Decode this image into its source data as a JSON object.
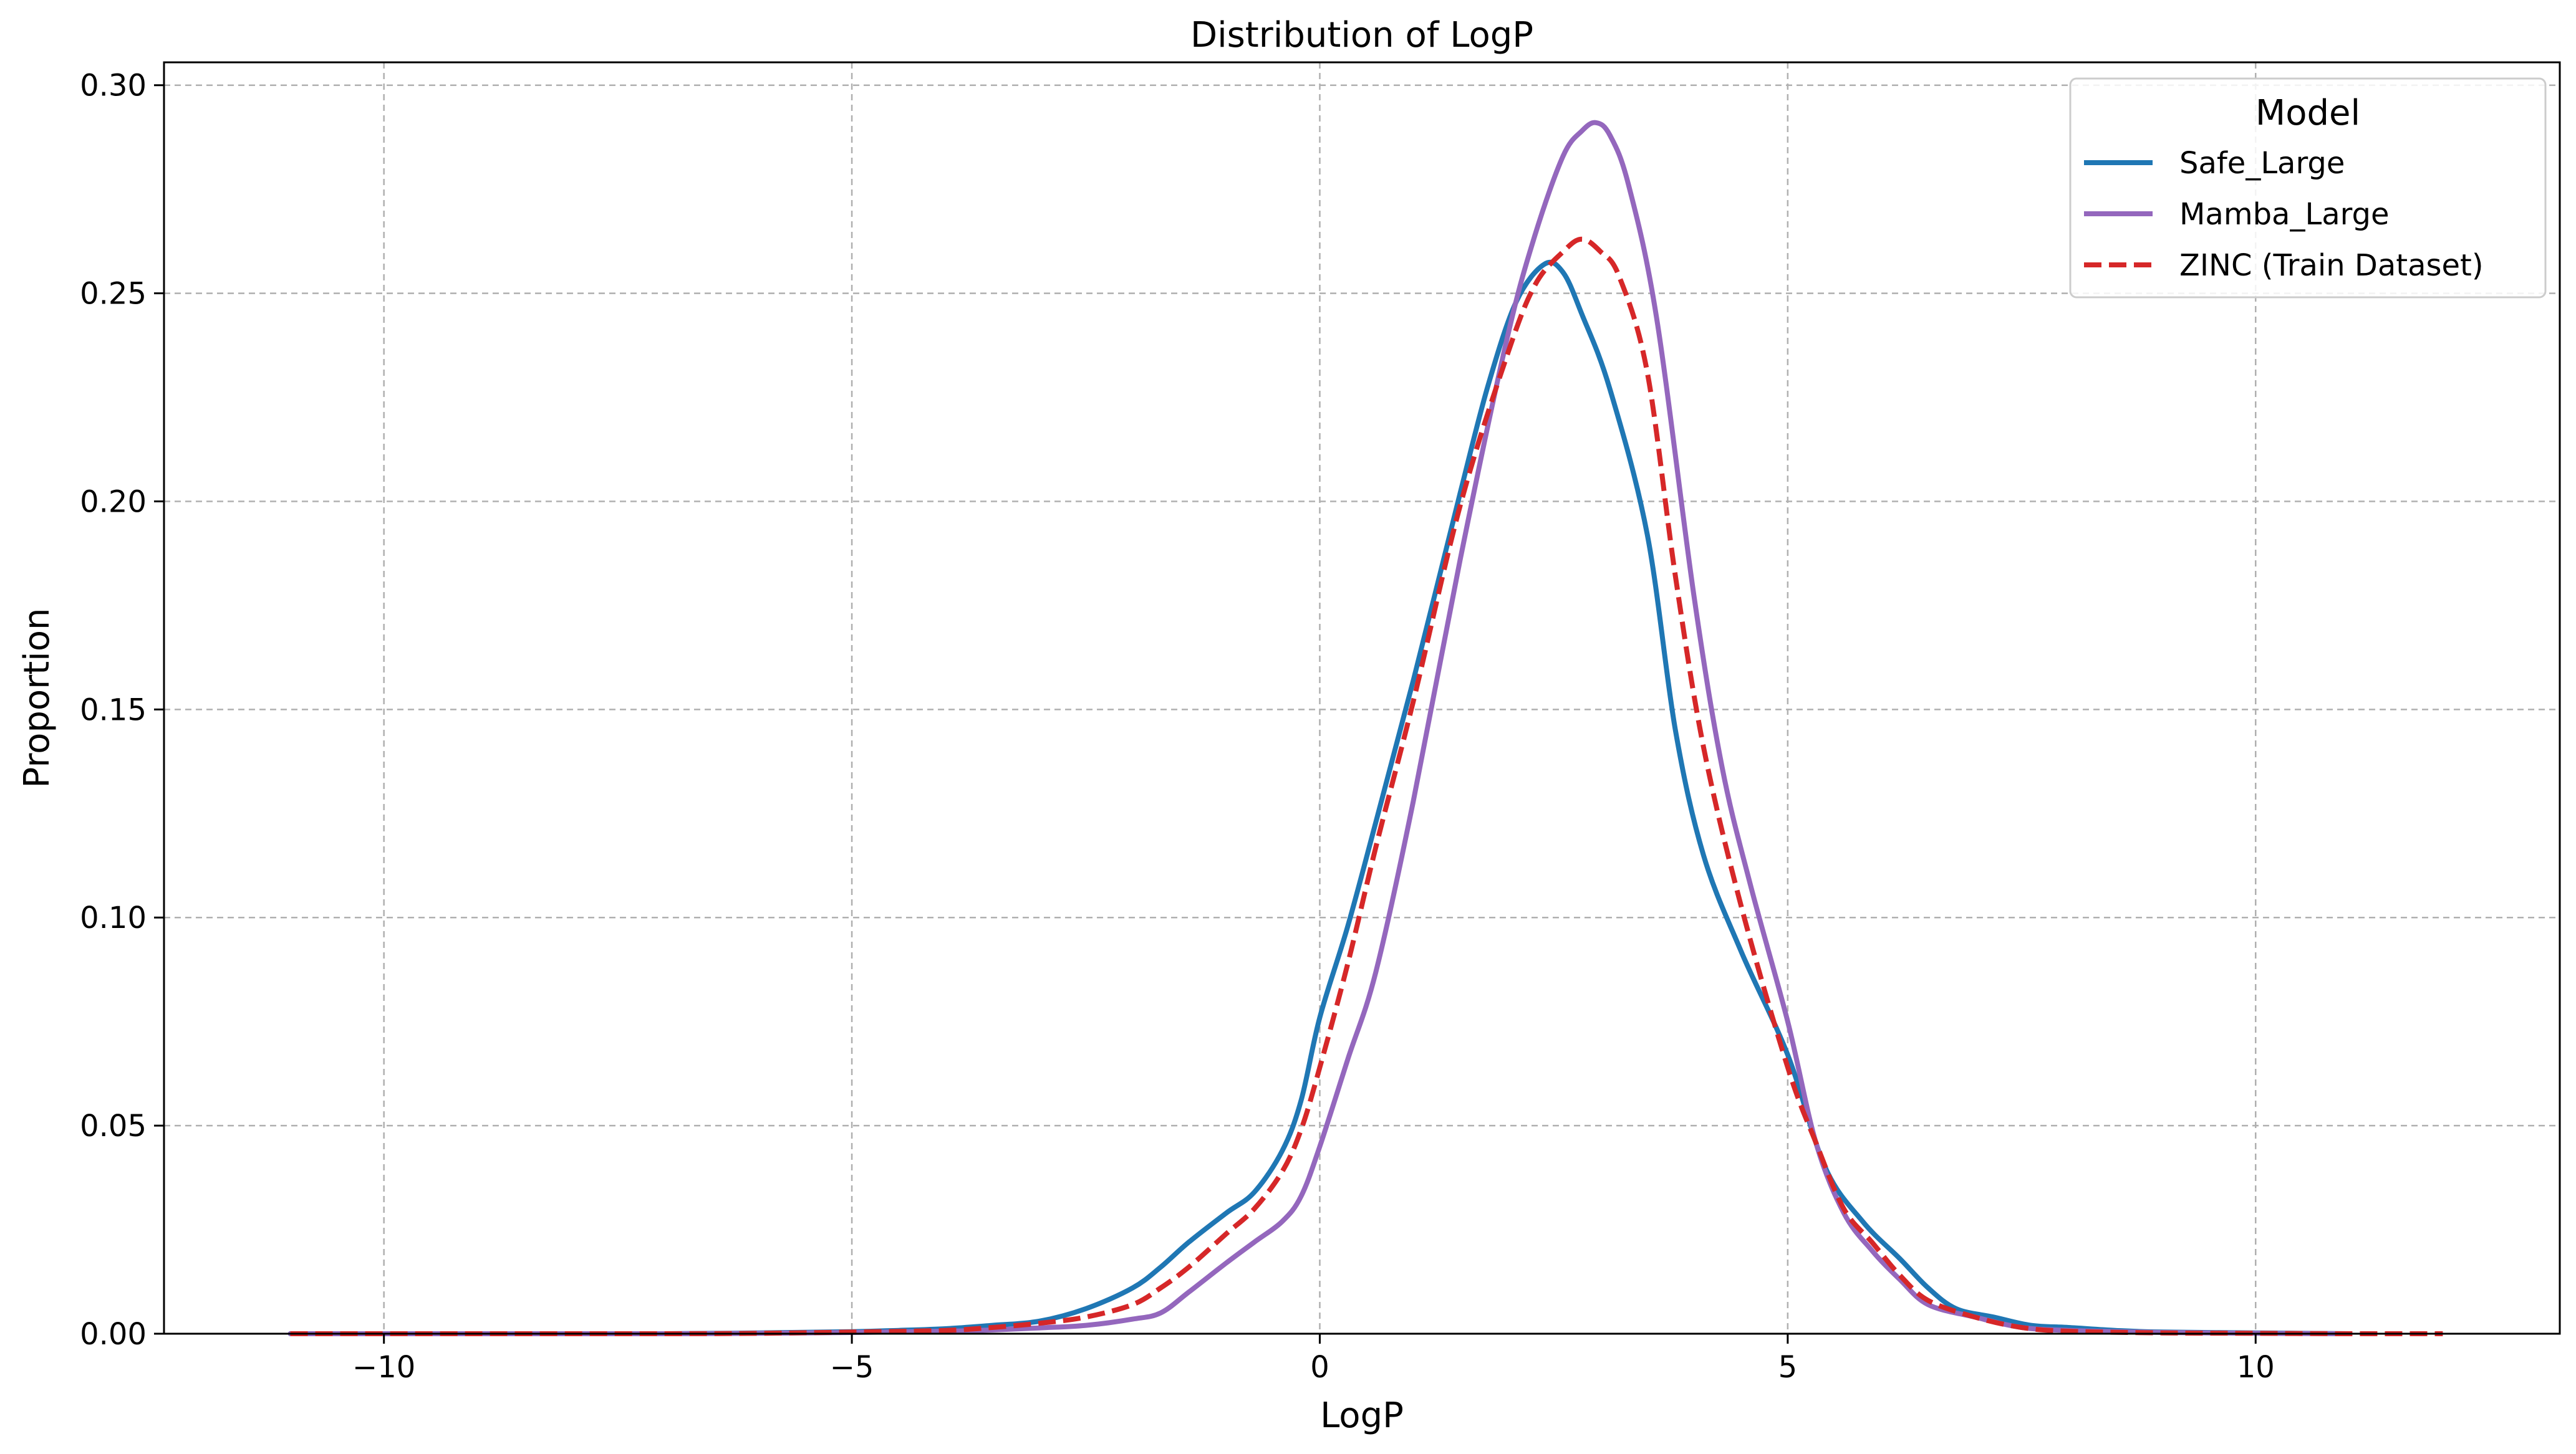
{
  "chart_data": {
    "type": "line",
    "title": "Distribution of LogP",
    "xlabel": "LogP",
    "ylabel": "Proportion",
    "xlim": [
      -12.35,
      13.25
    ],
    "ylim": [
      0,
      0.3055
    ],
    "xticks": [
      -10,
      -5,
      0,
      5,
      10
    ],
    "xtick_labels": [
      "−10",
      "−5",
      "0",
      "5",
      "10"
    ],
    "yticks": [
      0,
      0.05,
      0.1,
      0.15,
      0.2,
      0.25,
      0.3
    ],
    "ytick_labels": [
      "0.00",
      "0.05",
      "0.10",
      "0.15",
      "0.20",
      "0.25",
      "0.30"
    ],
    "grid": true,
    "legend": {
      "title": "Model",
      "position": "top-right"
    },
    "series": [
      {
        "name": "Safe_Large",
        "color": "#1f77b4",
        "style": "solid",
        "x": [
          -11,
          -9,
          -7,
          -6,
          -5,
          -4.5,
          -4,
          -3.5,
          -3,
          -2.5,
          -2,
          -1.7,
          -1.4,
          -1,
          -0.7,
          -0.4,
          -0.2,
          0,
          0.3,
          0.6,
          1,
          1.5,
          1.8,
          2.1,
          2.4,
          2.6,
          2.8,
          3.1,
          3.5,
          3.8,
          4.1,
          4.5,
          5,
          5.4,
          5.8,
          6.2,
          6.5,
          6.8,
          7.2,
          7.6,
          8,
          8.5,
          9,
          10,
          11
        ],
        "y": [
          0,
          0,
          0,
          0.0002,
          0.0005,
          0.0008,
          0.0012,
          0.002,
          0.003,
          0.006,
          0.011,
          0.016,
          0.022,
          0.029,
          0.034,
          0.044,
          0.056,
          0.076,
          0.098,
          0.123,
          0.157,
          0.202,
          0.228,
          0.248,
          0.257,
          0.255,
          0.245,
          0.227,
          0.192,
          0.145,
          0.115,
          0.092,
          0.067,
          0.04,
          0.027,
          0.018,
          0.011,
          0.006,
          0.004,
          0.002,
          0.0015,
          0.0008,
          0.0004,
          0.0002,
          0
        ]
      },
      {
        "name": "Mamba_Large",
        "color": "#9467bd",
        "style": "solid",
        "x": [
          -11,
          -9,
          -7,
          -6,
          -5,
          -4,
          -3.5,
          -3,
          -2.5,
          -2,
          -1.7,
          -1.4,
          -1,
          -0.7,
          -0.4,
          -0.2,
          0,
          0.3,
          0.6,
          1,
          1.5,
          2,
          2.3,
          2.6,
          2.8,
          2.95,
          3.1,
          3.3,
          3.6,
          4,
          4.3,
          4.6,
          5,
          5.3,
          5.6,
          5.9,
          6.2,
          6.5,
          7,
          7.5,
          8,
          9,
          10,
          11
        ],
        "y": [
          0,
          0,
          0,
          0.0001,
          0.0003,
          0.0006,
          0.0009,
          0.0014,
          0.002,
          0.0035,
          0.005,
          0.01,
          0.017,
          0.022,
          0.027,
          0.033,
          0.045,
          0.066,
          0.087,
          0.128,
          0.186,
          0.239,
          0.264,
          0.283,
          0.289,
          0.291,
          0.288,
          0.276,
          0.244,
          0.177,
          0.136,
          0.108,
          0.075,
          0.046,
          0.029,
          0.02,
          0.013,
          0.007,
          0.004,
          0.0015,
          0.0008,
          0.0003,
          0.0001,
          0
        ]
      },
      {
        "name": "ZINC (Train Dataset)",
        "color": "#d62728",
        "style": "dashed",
        "x": [
          -11,
          -9,
          -7,
          -6,
          -5,
          -4,
          -3.5,
          -3,
          -2.5,
          -2,
          -1.7,
          -1.4,
          -1,
          -0.7,
          -0.4,
          -0.2,
          0,
          0.3,
          0.6,
          1,
          1.5,
          2,
          2.3,
          2.6,
          2.8,
          3,
          3.2,
          3.5,
          3.8,
          4.1,
          4.5,
          5,
          5.3,
          5.6,
          5.9,
          6.2,
          6.5,
          7,
          7.5,
          8,
          9,
          10,
          11,
          12
        ],
        "y": [
          0,
          0,
          0,
          0.0001,
          0.0004,
          0.0008,
          0.0015,
          0.0025,
          0.004,
          0.007,
          0.011,
          0.016,
          0.024,
          0.03,
          0.039,
          0.049,
          0.064,
          0.089,
          0.117,
          0.152,
          0.199,
          0.235,
          0.252,
          0.26,
          0.263,
          0.26,
          0.254,
          0.231,
          0.182,
          0.141,
          0.103,
          0.064,
          0.046,
          0.03,
          0.022,
          0.014,
          0.008,
          0.004,
          0.0015,
          0.0006,
          0.0002,
          0.0001,
          0,
          0
        ]
      }
    ]
  }
}
